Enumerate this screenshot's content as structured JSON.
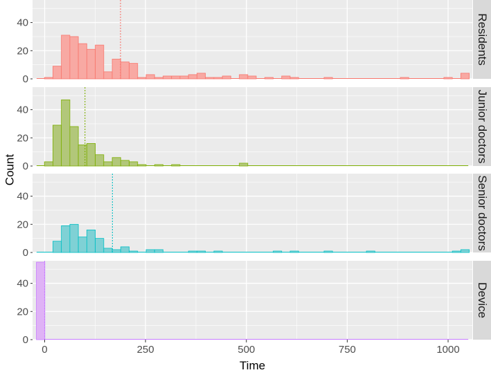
{
  "chart_data": {
    "type": "histogram",
    "layout": "facet-rows",
    "xlabel": "Time",
    "ylabel": "Count",
    "xlim": [
      -30,
      1060
    ],
    "ylim": [
      0,
      56
    ],
    "x_ticks": [
      0,
      250,
      500,
      750,
      1000
    ],
    "x_tick_labels": [
      "0",
      "250",
      "500",
      "750",
      "1000"
    ],
    "y_ticks": [
      0,
      20,
      40
    ],
    "y_tick_labels": [
      "0",
      "20",
      "40"
    ],
    "bin_width": 21,
    "grid": true,
    "legend": "none",
    "colors": {
      "panel_bg": "#ebebeb",
      "grid": "#ffffff",
      "strip_bg": "#d9d9d9"
    },
    "facets": [
      {
        "name": "Residents",
        "fill": "#f8a9a3",
        "stroke": "#f8766d",
        "mean_line": 188,
        "bins": [
          {
            "x": 10,
            "count": 1
          },
          {
            "x": 31,
            "count": 9
          },
          {
            "x": 52,
            "count": 31
          },
          {
            "x": 73,
            "count": 30
          },
          {
            "x": 94,
            "count": 25
          },
          {
            "x": 115,
            "count": 21
          },
          {
            "x": 136,
            "count": 24
          },
          {
            "x": 157,
            "count": 5
          },
          {
            "x": 178,
            "count": 14
          },
          {
            "x": 199,
            "count": 12
          },
          {
            "x": 220,
            "count": 11
          },
          {
            "x": 241,
            "count": 1
          },
          {
            "x": 262,
            "count": 3
          },
          {
            "x": 283,
            "count": 1
          },
          {
            "x": 304,
            "count": 2
          },
          {
            "x": 325,
            "count": 2
          },
          {
            "x": 346,
            "count": 2
          },
          {
            "x": 367,
            "count": 3
          },
          {
            "x": 388,
            "count": 4
          },
          {
            "x": 409,
            "count": 1
          },
          {
            "x": 430,
            "count": 1
          },
          {
            "x": 451,
            "count": 2
          },
          {
            "x": 493,
            "count": 3
          },
          {
            "x": 514,
            "count": 2
          },
          {
            "x": 556,
            "count": 1
          },
          {
            "x": 598,
            "count": 2
          },
          {
            "x": 619,
            "count": 1
          },
          {
            "x": 703,
            "count": 1
          },
          {
            "x": 892,
            "count": 1
          },
          {
            "x": 1000,
            "count": 1
          },
          {
            "x": 1042,
            "count": 4
          }
        ]
      },
      {
        "name": "Junior doctors",
        "fill": "#b2c77a",
        "stroke": "#7cae00",
        "mean_line": 100,
        "bins": [
          {
            "x": 10,
            "count": 3
          },
          {
            "x": 31,
            "count": 29
          },
          {
            "x": 52,
            "count": 47
          },
          {
            "x": 73,
            "count": 28
          },
          {
            "x": 94,
            "count": 15
          },
          {
            "x": 115,
            "count": 16
          },
          {
            "x": 136,
            "count": 8
          },
          {
            "x": 157,
            "count": 3
          },
          {
            "x": 178,
            "count": 6
          },
          {
            "x": 199,
            "count": 4
          },
          {
            "x": 220,
            "count": 3
          },
          {
            "x": 241,
            "count": 1
          },
          {
            "x": 283,
            "count": 1
          },
          {
            "x": 325,
            "count": 1
          },
          {
            "x": 493,
            "count": 2
          }
        ]
      },
      {
        "name": "Senior doctors",
        "fill": "#7fd1d5",
        "stroke": "#00bfc4",
        "mean_line": 168,
        "bins": [
          {
            "x": 31,
            "count": 8
          },
          {
            "x": 52,
            "count": 19
          },
          {
            "x": 73,
            "count": 20
          },
          {
            "x": 94,
            "count": 11
          },
          {
            "x": 115,
            "count": 16
          },
          {
            "x": 136,
            "count": 10
          },
          {
            "x": 157,
            "count": 3
          },
          {
            "x": 178,
            "count": 2
          },
          {
            "x": 199,
            "count": 4
          },
          {
            "x": 220,
            "count": 1
          },
          {
            "x": 262,
            "count": 2
          },
          {
            "x": 283,
            "count": 2
          },
          {
            "x": 367,
            "count": 1
          },
          {
            "x": 388,
            "count": 1
          },
          {
            "x": 430,
            "count": 1
          },
          {
            "x": 577,
            "count": 1
          },
          {
            "x": 619,
            "count": 1
          },
          {
            "x": 703,
            "count": 1
          },
          {
            "x": 808,
            "count": 1
          },
          {
            "x": 1021,
            "count": 1
          },
          {
            "x": 1042,
            "count": 2
          }
        ]
      },
      {
        "name": "Device",
        "fill": "#dfb2f6",
        "stroke": "#c77cff",
        "mean_line": 0,
        "bins": [
          {
            "x": -10,
            "count": 55
          }
        ]
      }
    ]
  }
}
